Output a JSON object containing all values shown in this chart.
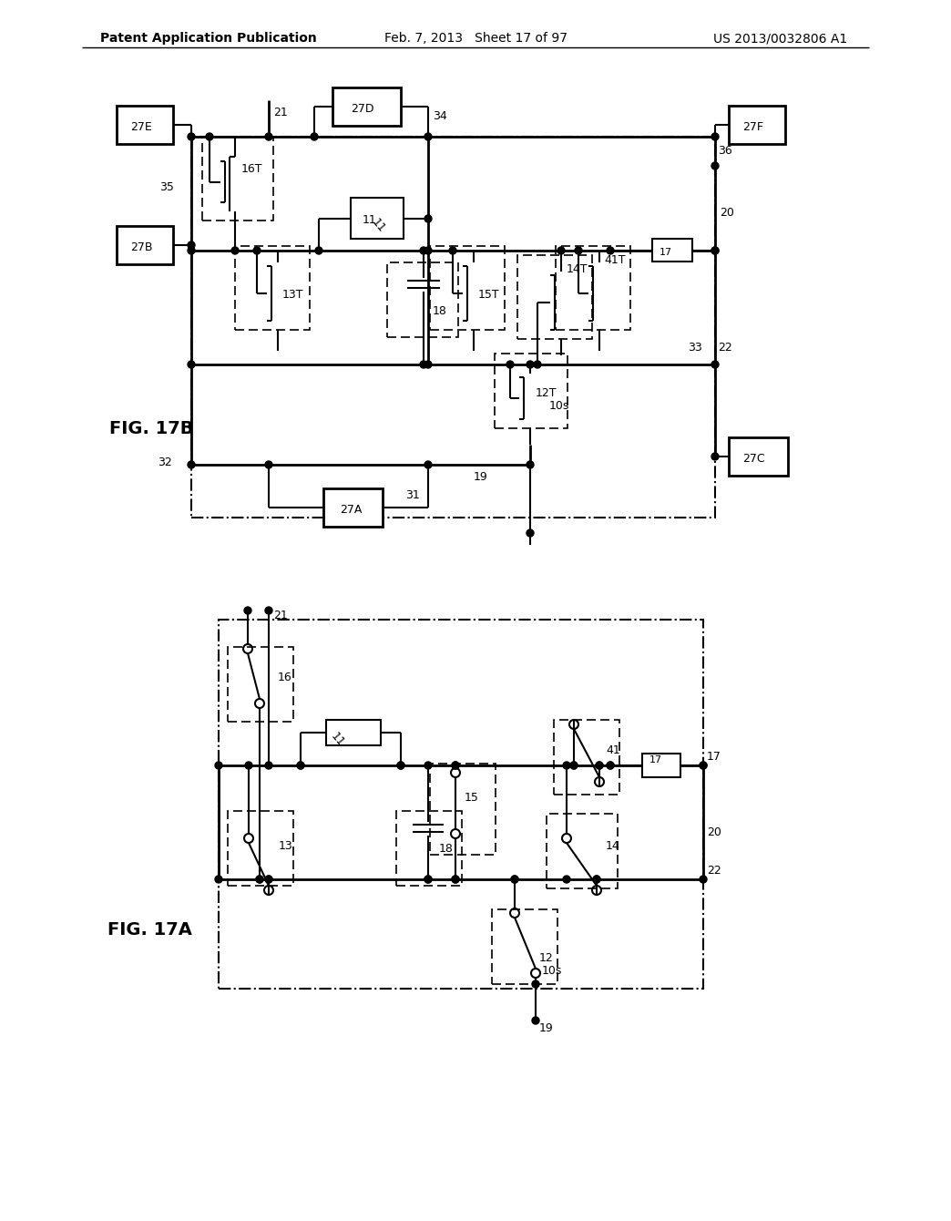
{
  "bg_color": "#ffffff",
  "header_left": "Patent Application Publication",
  "header_mid": "Feb. 7, 2013   Sheet 17 of 97",
  "header_right": "US 2013/0032806 A1",
  "fig17a_label": "FIG. 17A",
  "fig17b_label": "FIG. 17B",
  "line_color": "#000000"
}
